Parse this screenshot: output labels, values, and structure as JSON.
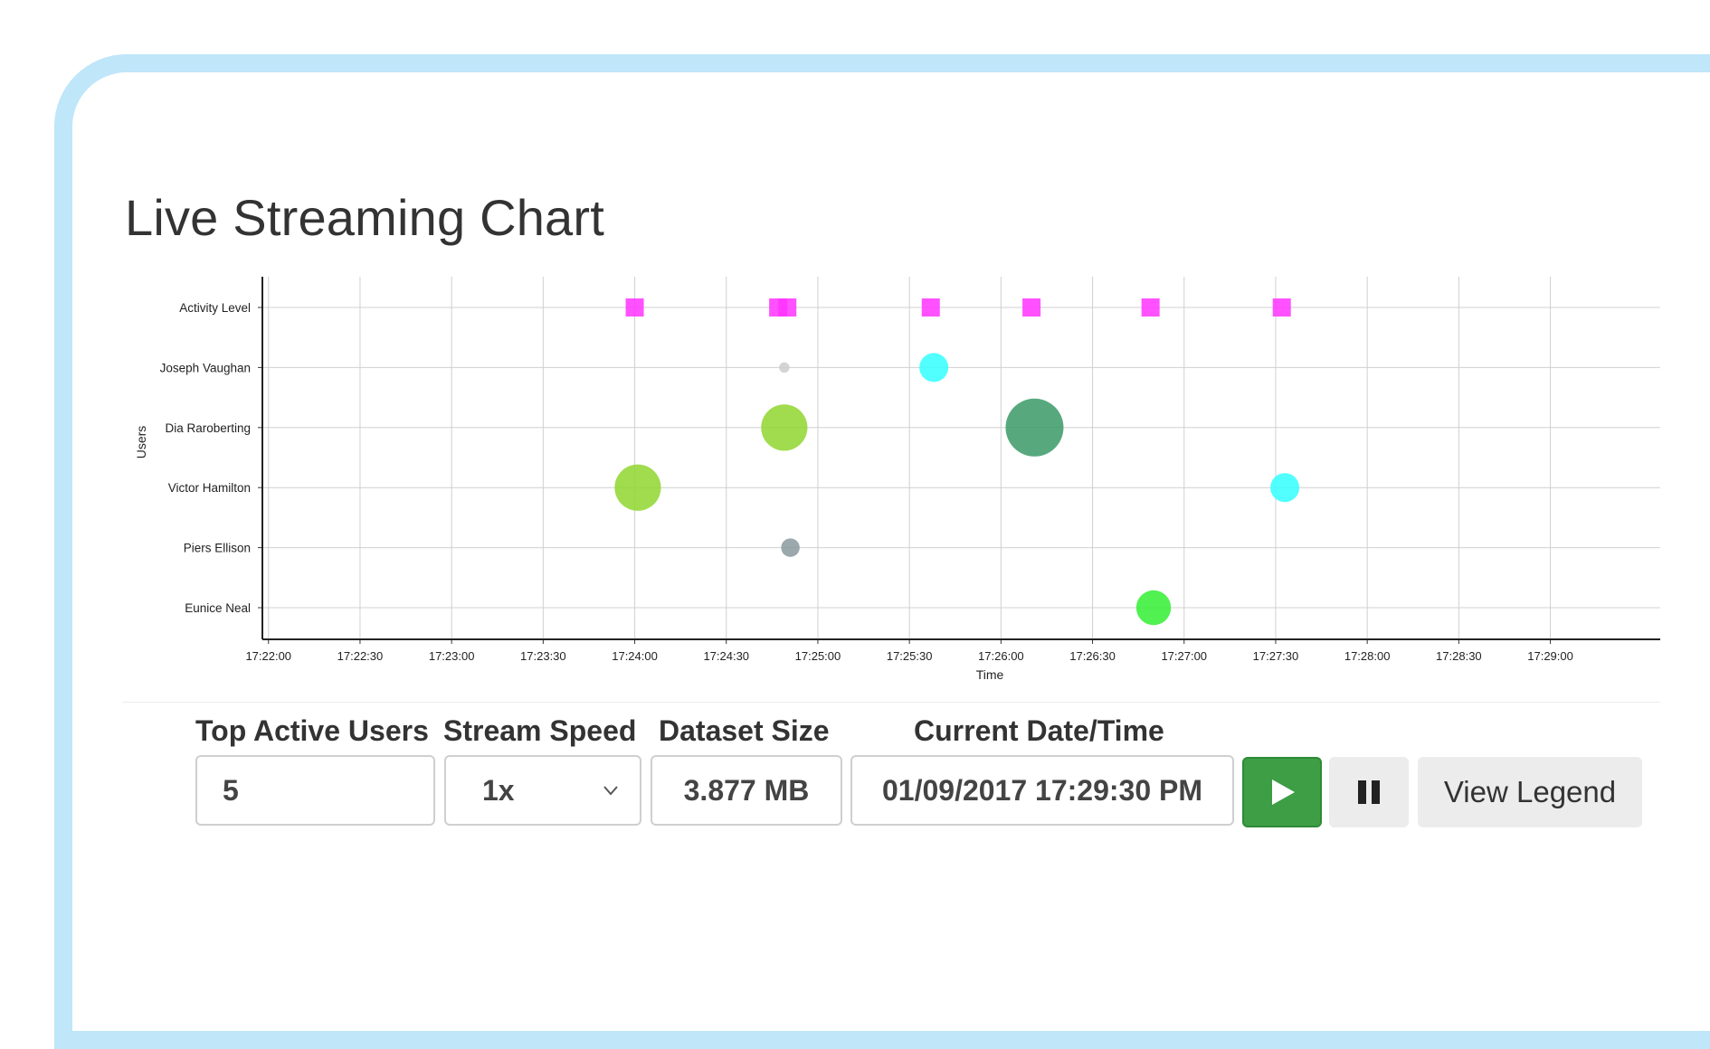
{
  "page": {
    "title": "Live Streaming Chart"
  },
  "chart_data": {
    "type": "scatter",
    "xlabel": "Time",
    "ylabel": "Users",
    "x_ticks": [
      "17:22:00",
      "17:22:30",
      "17:23:00",
      "17:23:30",
      "17:24:00",
      "17:24:30",
      "17:25:00",
      "17:25:30",
      "17:26:00",
      "17:26:30",
      "17:27:00",
      "17:27:30",
      "17:28:00",
      "17:28:30",
      "17:29:00"
    ],
    "xlim": [
      "17:21:58",
      "17:29:36"
    ],
    "categories": [
      "Activity Level",
      "Joseph Vaughan",
      "Dia Raroberting",
      "Victor Hamilton",
      "Piers Ellison",
      "Eunice Neal"
    ],
    "grid": true,
    "activity_points": [
      {
        "time": "17:24:00",
        "category": "Activity Level",
        "color": "#ff33ff"
      },
      {
        "time": "17:24:47",
        "category": "Activity Level",
        "color": "#ff33ff"
      },
      {
        "time": "17:24:50",
        "category": "Activity Level",
        "color": "#ff33ff"
      },
      {
        "time": "17:25:37",
        "category": "Activity Level",
        "color": "#ff33ff"
      },
      {
        "time": "17:26:10",
        "category": "Activity Level",
        "color": "#ff33ff"
      },
      {
        "time": "17:26:49",
        "category": "Activity Level",
        "color": "#ff33ff"
      },
      {
        "time": "17:27:32",
        "category": "Activity Level",
        "color": "#ff33ff"
      }
    ],
    "bubbles": [
      {
        "time": "17:24:49",
        "category": "Joseph Vaughan",
        "size": 0.18,
        "color": "#cccccc"
      },
      {
        "time": "17:25:38",
        "category": "Joseph Vaughan",
        "size": 0.5,
        "color": "#33ffff"
      },
      {
        "time": "17:24:49",
        "category": "Dia Raroberting",
        "size": 0.8,
        "color": "#8fd62f"
      },
      {
        "time": "17:26:11",
        "category": "Dia Raroberting",
        "size": 1.0,
        "color": "#3a9a66"
      },
      {
        "time": "17:24:01",
        "category": "Victor Hamilton",
        "size": 0.8,
        "color": "#8fd62f"
      },
      {
        "time": "17:27:33",
        "category": "Victor Hamilton",
        "size": 0.5,
        "color": "#33ffff"
      },
      {
        "time": "17:24:51",
        "category": "Piers Ellison",
        "size": 0.32,
        "color": "#8a9a9f"
      },
      {
        "time": "17:26:50",
        "category": "Eunice Neal",
        "size": 0.6,
        "color": "#33ee33"
      }
    ]
  },
  "controls": {
    "top_users_label": "Top Active Users",
    "top_users_value": "5",
    "speed_label": "Stream Speed",
    "speed_value": "1x",
    "dataset_label": "Dataset Size",
    "dataset_value": "3.877 MB",
    "datetime_label": "Current Date/Time",
    "datetime_value": "01/09/2017 17:29:30 PM",
    "legend_button": "View Legend"
  },
  "icons": {
    "play": "play-icon",
    "pause": "pause-icon",
    "dropdown": "chevron-down-icon"
  }
}
